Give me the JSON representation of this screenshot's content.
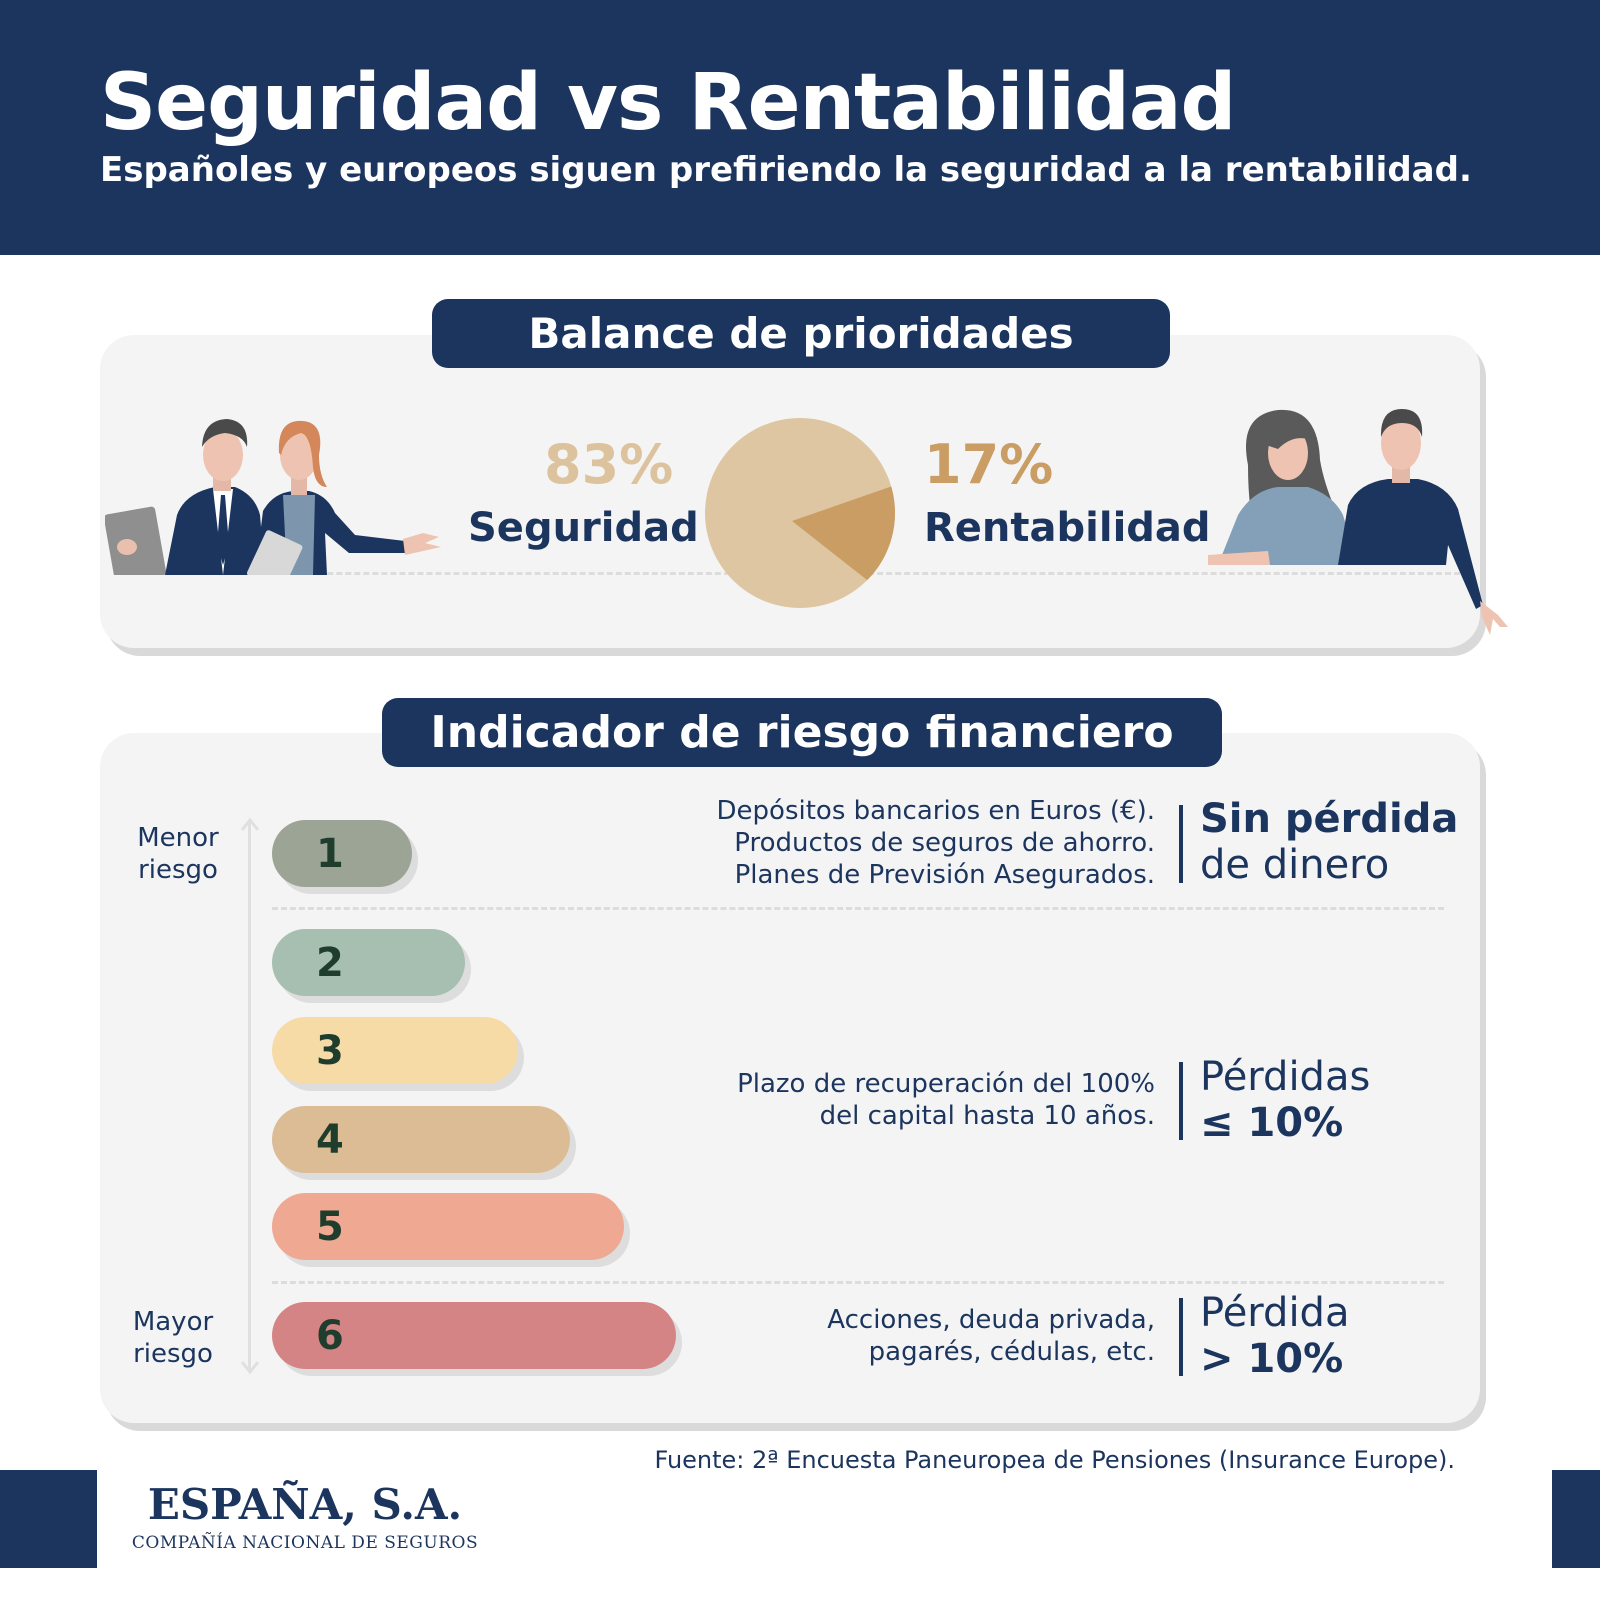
{
  "header": {
    "title": "Seguridad vs Rentabilidad",
    "subtitle": "Españoles y europeos siguen prefiriendo la seguridad a la rentabilidad."
  },
  "balance": {
    "title": "Balance de prioridades",
    "left_pct": "83%",
    "left_label": "Seguridad",
    "right_pct": "17%",
    "right_label": "Rentabilidad"
  },
  "chart_data": {
    "type": "pie",
    "title": "Balance de prioridades",
    "slices": [
      {
        "label": "Seguridad",
        "value": 83,
        "color": "#dfc6a3"
      },
      {
        "label": "Rentabilidad",
        "value": 17,
        "color": "#c99d63"
      }
    ]
  },
  "risk": {
    "title": "Indicador de riesgo financiero",
    "low_label": [
      "Menor",
      "riesgo"
    ],
    "high_label": [
      "Mayor",
      "riesgo"
    ],
    "levels": [
      {
        "label": "1",
        "color": "#9ca595"
      },
      {
        "label": "2",
        "color": "#a6bfb0"
      },
      {
        "label": "3",
        "color": "#f6dba7"
      },
      {
        "label": "4",
        "color": "#dbbc95"
      },
      {
        "label": "5",
        "color": "#efa891"
      },
      {
        "label": "6",
        "color": "#d58485"
      }
    ],
    "groups": [
      {
        "desc": [
          "Depósitos bancarios en Euros (€).",
          "Productos de seguros de ahorro.",
          "Planes de Previsión Asegurados."
        ],
        "loss": [
          "Sin pérdida",
          "de dinero"
        ]
      },
      {
        "desc": [
          "Plazo de recuperación del 100%",
          "del capital hasta 10 años."
        ],
        "loss": [
          "Pérdidas",
          "≤ 10%"
        ]
      },
      {
        "desc": [
          "Acciones, deuda privada,",
          "pagarés, cédulas, etc."
        ],
        "loss": [
          "Pérdida",
          "> 10%"
        ]
      }
    ]
  },
  "footer": {
    "source": "Fuente: 2ª Encuesta Paneuropea de Pensiones (Insurance Europe).",
    "logo_name": "ESPAÑA, S.A.",
    "logo_sub": "COMPAÑÍA NACIONAL DE SEGUROS"
  }
}
